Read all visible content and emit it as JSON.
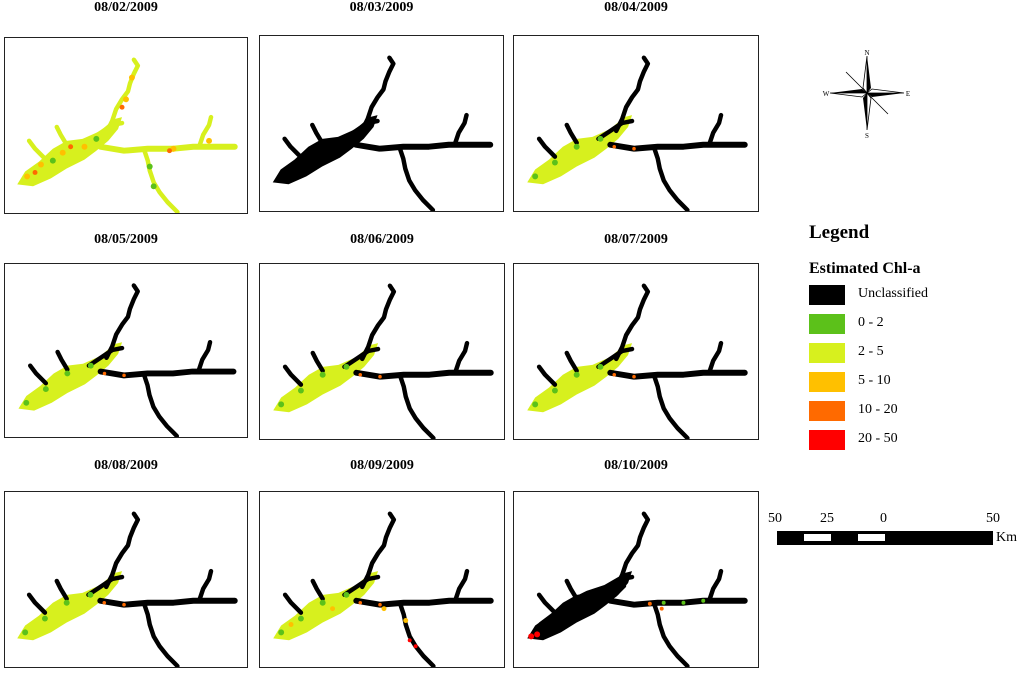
{
  "panels": [
    {
      "date": "08/02/2009",
      "scheme": "mixed-high"
    },
    {
      "date": "08/03/2009",
      "scheme": "unclassified-west"
    },
    {
      "date": "08/04/2009",
      "scheme": "green"
    },
    {
      "date": "08/05/2009",
      "scheme": "green"
    },
    {
      "date": "08/06/2009",
      "scheme": "green"
    },
    {
      "date": "08/07/2009",
      "scheme": "green"
    },
    {
      "date": "08/08/2009",
      "scheme": "green"
    },
    {
      "date": "08/09/2009",
      "scheme": "green-patchy"
    },
    {
      "date": "08/10/2009",
      "scheme": "unclassified-west-red"
    }
  ],
  "compass": {
    "north": "N",
    "south": "S",
    "east": "E",
    "west": "W"
  },
  "legend": {
    "title": "Legend",
    "subtitle": "Estimated Chl-a",
    "items": [
      {
        "label": "Unclassified",
        "color": "#000000"
      },
      {
        "label": "0 - 2",
        "color": "#5cc11a"
      },
      {
        "label": "2 - 5",
        "color": "#d7f01e"
      },
      {
        "label": "5 - 10",
        "color": "#ffc000"
      },
      {
        "label": "10 - 20",
        "color": "#ff6a00"
      },
      {
        "label": "20 - 50",
        "color": "#ff0000"
      }
    ]
  },
  "scale": {
    "labels": [
      "50",
      "25",
      "0",
      "50"
    ],
    "unit": "Km"
  }
}
